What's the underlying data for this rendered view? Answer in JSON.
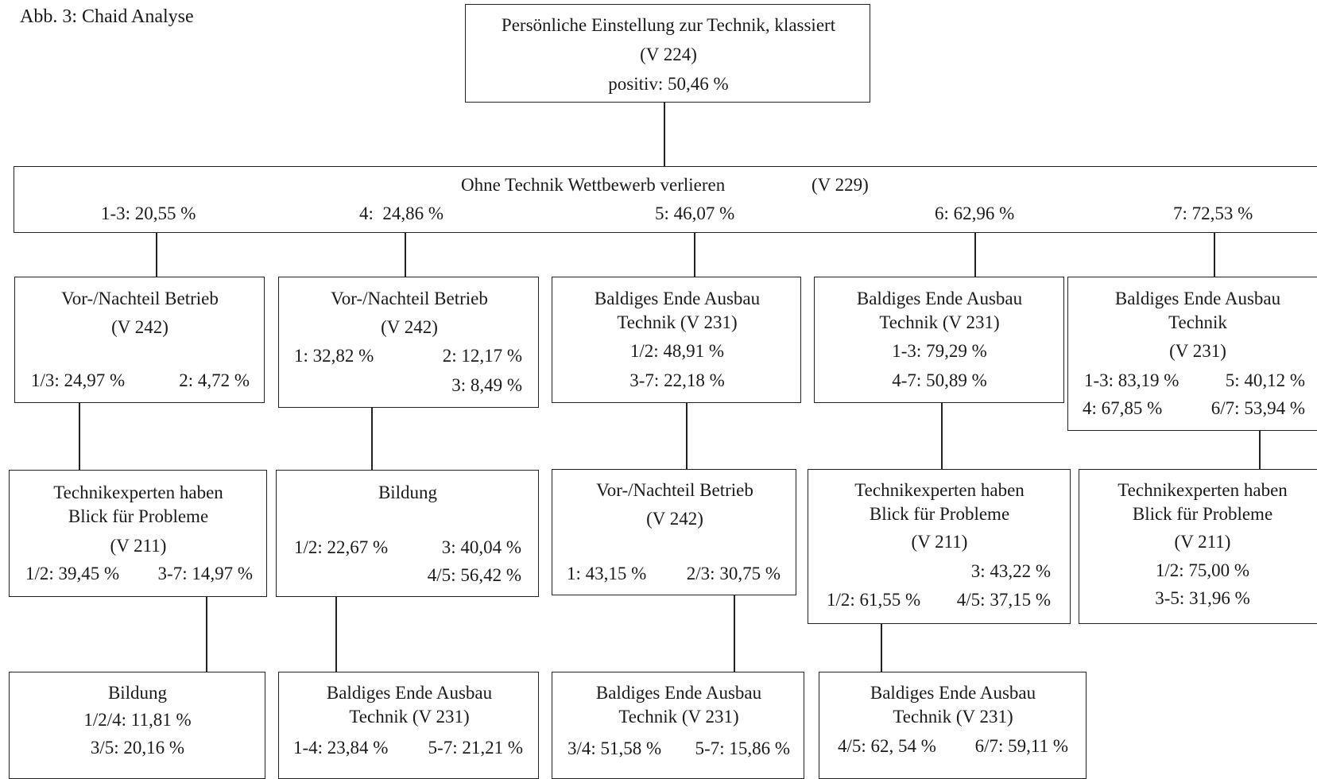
{
  "caption": "Abb. 3: Chaid Analyse",
  "root": {
    "title": "Persönliche Einstellung zur Technik, klassiert",
    "var": "(V 224)",
    "value": "positiv: 50,46 %"
  },
  "split": {
    "title": "Ohne Technik Wettbewerb verlieren",
    "var": "(V 229)",
    "branches": [
      "1-3: 20,55 %",
      "4:  24,86 %",
      "5: 46,07 %",
      "6: 62,96 %",
      "7: 72,53 %"
    ]
  },
  "level2": [
    {
      "line1": "Vor-/Nachteil Betrieb",
      "line2": "(V 242)",
      "a": "1/3: 24,97 %",
      "b": "2: 4,72 %"
    },
    {
      "line1": "Vor-/Nachteil Betrieb",
      "line2": "(V 242)",
      "a": "1: 32,82 %",
      "b": "2: 12,17 %",
      "c": "3: 8,49 %"
    },
    {
      "line1": "Baldiges Ende Ausbau",
      "line2": "Technik (V 231)",
      "a": "1/2: 48,91 %",
      "b": "3-7: 22,18 %"
    },
    {
      "line1": "Baldiges Ende Ausbau",
      "line2": "Technik (V 231)",
      "a": "1-3: 79,29 %",
      "b": "4-7: 50,89 %"
    },
    {
      "line1": "Baldiges Ende Ausbau",
      "line2": "Technik",
      "line3": "(V 231)",
      "a": "1-3: 83,19 %",
      "b": "5: 40,12 %",
      "c": "4: 67,85 %",
      "d": "6/7: 53,94 %"
    }
  ],
  "level3": [
    {
      "line1": "Technikexperten haben",
      "line2": "Blick für Probleme",
      "line3": "(V 211)",
      "a": "1/2: 39,45 %",
      "b": "3-7: 14,97 %"
    },
    {
      "line1": "Bildung",
      "a": "1/2: 22,67 %",
      "b": "3: 40,04 %",
      "c": "4/5: 56,42 %"
    },
    {
      "line1": "Vor-/Nachteil Betrieb",
      "line2": "(V 242)",
      "a": "1: 43,15 %",
      "b": "2/3: 30,75 %"
    },
    {
      "line1": "Technikexperten haben",
      "line2": "Blick für Probleme",
      "line3": "(V 211)",
      "a": "3: 43,22 %",
      "b": "1/2: 61,55 %",
      "c": "4/5: 37,15 %"
    },
    {
      "line1": "Technikexperten haben",
      "line2": "Blick für Probleme",
      "line3": "(V 211)",
      "a": "1/2: 75,00 %",
      "b": "3-5: 31,96 %"
    }
  ],
  "level4": [
    {
      "line1": "Bildung",
      "a": "1/2/4: 11,81 %",
      "b": "3/5: 20,16 %"
    },
    {
      "line1": "Baldiges Ende Ausbau",
      "line2": "Technik (V 231)",
      "a": "1-4: 23,84 %",
      "b": "5-7: 21,21 %"
    },
    {
      "line1": "Baldiges Ende Ausbau",
      "line2": "Technik (V 231)",
      "a": "3/4: 51,58 %",
      "b": "5-7: 15,86 %"
    },
    {
      "line1": "Baldiges Ende Ausbau",
      "line2": "Technik (V 231)",
      "a": "4/5: 62, 54 %",
      "b": "6/7: 59,11 %"
    }
  ]
}
